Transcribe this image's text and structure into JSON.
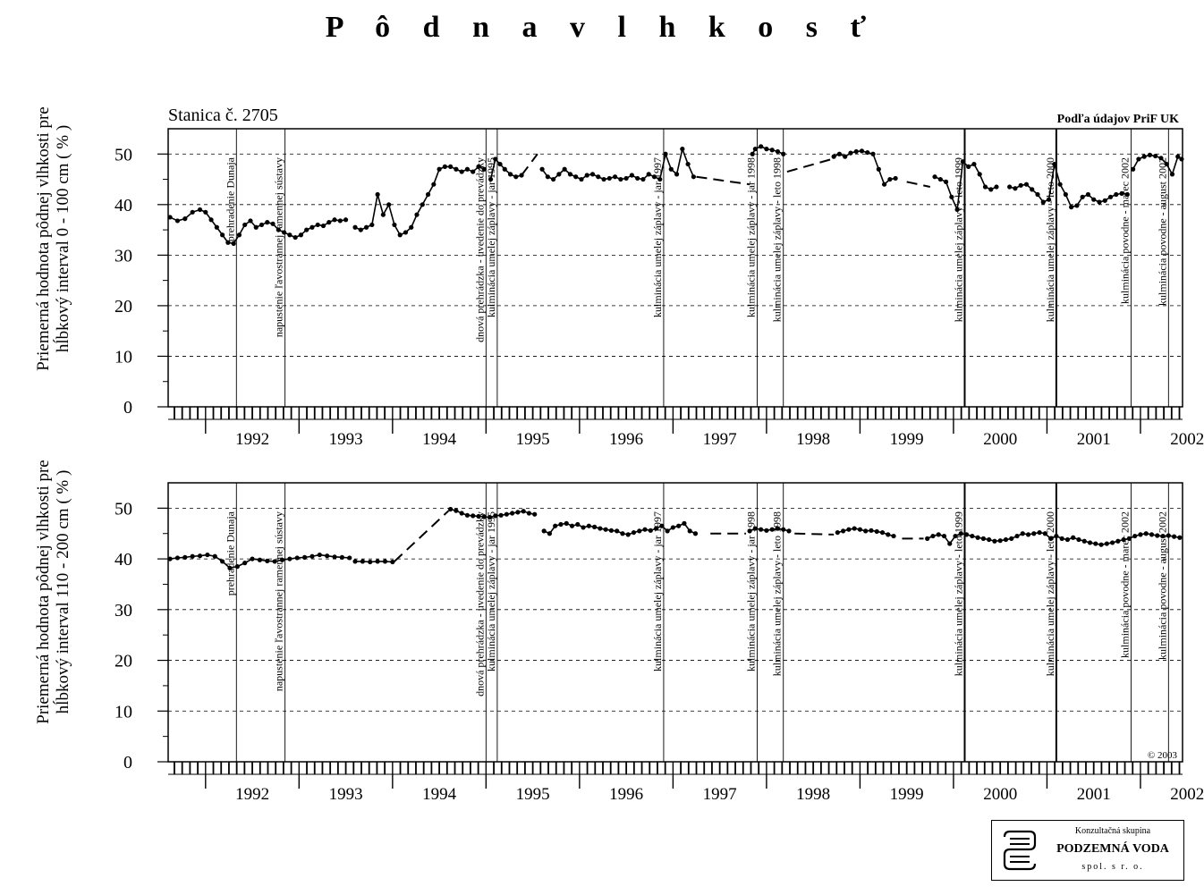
{
  "title": "P ô d n a   v l h k o s ť",
  "station_label": "Stanica č.  2705",
  "source_note": "Podľa údajov PriF UK",
  "copyright": "© 2003",
  "logo": {
    "line1": "Konzultačná skupina",
    "line2": "PODZEMNÁ VODA",
    "line3": "spol. s r. o."
  },
  "chart_data": [
    {
      "type": "scatter",
      "ylabel": "Priemerná hodnota pôdnej vlhkosti pre hĺbkový interval 0 - 100 cm ( % )",
      "ylim": [
        0,
        55
      ],
      "yticks": [
        0,
        10,
        20,
        30,
        40,
        50
      ],
      "xlim": [
        1991.6,
        2002.45
      ],
      "year_labels": [
        "1992",
        "1993",
        "1994",
        "1995",
        "1996",
        "1997",
        "1998",
        "1999",
        "2000",
        "2001",
        "2002"
      ],
      "events": [
        {
          "x": 1992.33,
          "label": "prehradenie Dunaja"
        },
        {
          "x": 1992.85,
          "label": "napustenie ľavostrannej ramennej sústavy"
        },
        {
          "x": 1995.0,
          "label": "dnová prehrádzka - uvedenie do prevádzky"
        },
        {
          "x": 1995.12,
          "label": "kulminácia umelej záplavy - jar 1995"
        },
        {
          "x": 1996.9,
          "label": "kulminácia umelej záplavy - jar 1997"
        },
        {
          "x": 1997.9,
          "label": "kulminácia umelej záplavy - jar 1998"
        },
        {
          "x": 1998.18,
          "label": "kulminácia umelej záplavy - leto 1998"
        },
        {
          "x": 2000.12,
          "label": "kulminácia umelej záplavy - leto 1999"
        },
        {
          "x": 2001.1,
          "label": "kulminácia umelej záplavy - leto 2000"
        },
        {
          "x": 2001.9,
          "label": "kulminácia povodne - marec 2002"
        },
        {
          "x": 2002.3,
          "label": "kulminácia povodne - august 2002"
        }
      ],
      "segments": [
        {
          "style": "points",
          "x": [
            1991.62,
            1991.7,
            1991.78,
            1991.86,
            1991.94,
            1992.0,
            1992.06,
            1992.12,
            1992.18,
            1992.24,
            1992.3,
            1992.36,
            1992.42,
            1992.48,
            1992.54,
            1992.6,
            1992.66,
            1992.72,
            1992.78,
            1992.84,
            1992.9,
            1992.96,
            1993.02,
            1993.08,
            1993.14,
            1993.2,
            1993.26,
            1993.32,
            1993.38,
            1993.44,
            1993.5
          ],
          "y": [
            37.5,
            36.8,
            37.2,
            38.5,
            39,
            38.5,
            37,
            35.5,
            34,
            32.5,
            32.3,
            34,
            36,
            36.8,
            35.5,
            36,
            36.5,
            36.2,
            35,
            34.5,
            34,
            33.5,
            34,
            35,
            35.5,
            36,
            35.8,
            36.5,
            37,
            36.8,
            37
          ]
        },
        {
          "style": "points",
          "x": [
            1993.6,
            1993.66,
            1993.72,
            1993.78,
            1993.84,
            1993.9,
            1993.96,
            1994.02,
            1994.08,
            1994.14,
            1994.2,
            1994.26,
            1994.32,
            1994.38,
            1994.44,
            1994.5,
            1994.56,
            1994.62,
            1994.68,
            1994.74,
            1994.8,
            1994.86,
            1994.92,
            1994.98
          ],
          "y": [
            35.5,
            35,
            35.5,
            36,
            42,
            38,
            40,
            36,
            34,
            34.5,
            35.5,
            38,
            40,
            42,
            44,
            47,
            47.5,
            47.5,
            47,
            46.5,
            47,
            46.5,
            47.5,
            47
          ]
        },
        {
          "style": "points",
          "x": [
            1995.05,
            1995.1,
            1995.15,
            1995.2,
            1995.26,
            1995.32,
            1995.38
          ],
          "y": [
            45,
            49,
            48,
            47,
            46,
            45.5,
            45.8
          ]
        },
        {
          "style": "dashed",
          "x": [
            1995.38,
            1995.55
          ],
          "y": [
            45.8,
            50
          ]
        },
        {
          "style": "points",
          "x": [
            1995.6,
            1995.66,
            1995.72,
            1995.78,
            1995.84,
            1995.9,
            1995.96,
            1996.02,
            1996.08,
            1996.14,
            1996.2,
            1996.26,
            1996.32,
            1996.38,
            1996.44,
            1996.5,
            1996.56,
            1996.62,
            1996.68,
            1996.74,
            1996.8,
            1996.86,
            1996.92,
            1996.98,
            1997.04,
            1997.1,
            1997.16,
            1997.22
          ],
          "y": [
            47,
            45.5,
            45,
            46,
            47,
            46,
            45.5,
            45,
            45.8,
            46,
            45.5,
            45,
            45.2,
            45.5,
            45,
            45.2,
            45.8,
            45.2,
            45,
            46,
            45.5,
            45,
            50,
            47,
            46,
            51,
            48,
            45.5
          ]
        },
        {
          "style": "dashed",
          "x": [
            1997.25,
            1997.82
          ],
          "y": [
            45.5,
            44
          ]
        },
        {
          "style": "points",
          "x": [
            1997.85,
            1997.88,
            1997.94,
            1998.0,
            1998.06,
            1998.12,
            1998.18
          ],
          "y": [
            50,
            51,
            51.5,
            51,
            50.8,
            50.5,
            50
          ]
        },
        {
          "style": "dashed",
          "x": [
            1998.22,
            1998.7
          ],
          "y": [
            46.5,
            49
          ]
        },
        {
          "style": "points",
          "x": [
            1998.72,
            1998.78,
            1998.84,
            1998.9,
            1998.96,
            1999.02,
            1999.08,
            1999.14,
            1999.2,
            1999.26,
            1999.32,
            1999.38
          ],
          "y": [
            49.5,
            50,
            49.5,
            50.2,
            50.5,
            50.6,
            50.3,
            50,
            47,
            44,
            45,
            45.2
          ]
        },
        {
          "style": "dashed",
          "x": [
            1999.5,
            1999.75
          ],
          "y": [
            44.5,
            43.5
          ]
        },
        {
          "style": "points",
          "x": [
            1999.8,
            1999.86,
            1999.92,
            1999.98,
            2000.04,
            2000.1,
            2000.16,
            2000.22,
            2000.28,
            2000.34,
            2000.4,
            2000.46
          ],
          "y": [
            45.5,
            45,
            44.5,
            41.5,
            39,
            48.5,
            47.5,
            48,
            46,
            43.5,
            43,
            43.5
          ]
        },
        {
          "style": "points",
          "x": [
            2000.6,
            2000.66,
            2000.72,
            2000.78,
            2000.84,
            2000.9,
            2000.96,
            2001.02,
            2001.08,
            2001.14,
            2001.2,
            2001.26,
            2001.32,
            2001.38,
            2001.44,
            2001.5,
            2001.56,
            2001.62,
            2001.68,
            2001.74,
            2001.8,
            2001.86
          ],
          "y": [
            43.5,
            43.2,
            43.8,
            44,
            43,
            42,
            40.5,
            41,
            48,
            44,
            42,
            39.5,
            39.8,
            41.5,
            42,
            41,
            40.5,
            40.8,
            41.5,
            42,
            42.2,
            42
          ]
        },
        {
          "style": "points",
          "x": [
            2001.92,
            2001.98,
            2002.04,
            2002.1,
            2002.16,
            2002.22,
            2002.28,
            2002.34,
            2002.4,
            2002.44
          ],
          "y": [
            47,
            49,
            49.5,
            49.8,
            49.6,
            49.2,
            48,
            46,
            49.5,
            49
          ]
        }
      ]
    },
    {
      "type": "scatter",
      "ylabel": "Priemerná hodnota pôdnej vlhkosti pre hĺbkový interval 110 - 200 cm ( % )",
      "ylim": [
        0,
        55
      ],
      "yticks": [
        0,
        10,
        20,
        30,
        40,
        50
      ],
      "xlim": [
        1991.6,
        2002.45
      ],
      "year_labels": [
        "1992",
        "1993",
        "1994",
        "1995",
        "1996",
        "1997",
        "1998",
        "1999",
        "2000",
        "2001",
        "2002"
      ],
      "events": [
        {
          "x": 1992.33,
          "label": "prehradenie Dunaja"
        },
        {
          "x": 1992.85,
          "label": "napustenie ľavostrannej ramennej sústavy"
        },
        {
          "x": 1995.0,
          "label": "dnová prehrádzka - uvedenie do prevádzky"
        },
        {
          "x": 1995.12,
          "label": "kulminácia umelej záplavy - jar 1995"
        },
        {
          "x": 1996.9,
          "label": "kulminácia umelej záplavy - jar 1997"
        },
        {
          "x": 1997.9,
          "label": "kulminácia umelej záplavy - jar 1998"
        },
        {
          "x": 1998.18,
          "label": "kulminácia umelej záplavy - leto 1998"
        },
        {
          "x": 2000.12,
          "label": "kulminácia umelej záplavy - leto 1999"
        },
        {
          "x": 2001.1,
          "label": "kulminácia umelej záplavy - leto 2000"
        },
        {
          "x": 2001.9,
          "label": "kulminácia povodne - marec 2002"
        },
        {
          "x": 2002.3,
          "label": "kulminácia povodne - august 2002"
        }
      ],
      "segments": [
        {
          "style": "points",
          "x": [
            1991.62,
            1991.7,
            1991.78,
            1991.86,
            1991.94,
            1992.02,
            1992.1,
            1992.18,
            1992.26,
            1992.34,
            1992.42,
            1992.5,
            1992.58,
            1992.66,
            1992.74,
            1992.82,
            1992.9,
            1992.98,
            1993.06,
            1993.14,
            1993.22,
            1993.3,
            1993.38,
            1993.46,
            1993.54
          ],
          "y": [
            40,
            40.2,
            40.3,
            40.5,
            40.6,
            40.8,
            40.5,
            39.5,
            38.2,
            38.5,
            39.2,
            40,
            39.8,
            39.6,
            39.5,
            39.8,
            40,
            40.2,
            40.3,
            40.5,
            40.8,
            40.6,
            40.4,
            40.3,
            40.2
          ]
        },
        {
          "style": "points",
          "x": [
            1993.6,
            1993.68,
            1993.76,
            1993.84,
            1993.92,
            1994.0
          ],
          "y": [
            39.5,
            39.5,
            39.4,
            39.5,
            39.5,
            39.4
          ]
        },
        {
          "style": "dashed",
          "x": [
            1994.02,
            1994.6
          ],
          "y": [
            39.5,
            49.5
          ]
        },
        {
          "style": "points",
          "x": [
            1994.62,
            1994.68,
            1994.74,
            1994.8,
            1994.86,
            1994.92,
            1994.98,
            1995.04,
            1995.1,
            1995.16,
            1995.22,
            1995.28,
            1995.34,
            1995.4,
            1995.46,
            1995.52
          ],
          "y": [
            49.8,
            49.5,
            49,
            48.6,
            48.5,
            48.4,
            48.3,
            48.2,
            48.5,
            48.6,
            48.8,
            49,
            49.2,
            49.4,
            49,
            48.8
          ]
        },
        {
          "style": "points",
          "x": [
            1995.62,
            1995.68,
            1995.74,
            1995.8,
            1995.86,
            1995.92,
            1995.98,
            1996.04,
            1996.1,
            1996.16,
            1996.22,
            1996.28,
            1996.34,
            1996.4,
            1996.46,
            1996.52,
            1996.58,
            1996.64,
            1996.7,
            1996.76,
            1996.82,
            1996.88,
            1996.94,
            1997.0,
            1997.06,
            1997.12,
            1997.18,
            1997.24
          ],
          "y": [
            45.5,
            45,
            46.5,
            46.8,
            47,
            46.5,
            46.8,
            46.2,
            46.5,
            46.3,
            46,
            45.8,
            45.6,
            45.5,
            45,
            44.8,
            45.2,
            45.5,
            45.8,
            45.6,
            46,
            46.5,
            45.5,
            46.2,
            46.5,
            47,
            45.5,
            45
          ]
        },
        {
          "style": "dashed",
          "x": [
            1997.4,
            1997.78
          ],
          "y": [
            45,
            45
          ]
        },
        {
          "style": "points",
          "x": [
            1997.82,
            1997.88,
            1997.94,
            1998.0,
            1998.06,
            1998.12,
            1998.18,
            1998.24
          ],
          "y": [
            45.5,
            46,
            45.8,
            45.6,
            45.8,
            46,
            45.8,
            45.5
          ]
        },
        {
          "style": "dashed",
          "x": [
            1998.3,
            1998.72
          ],
          "y": [
            45,
            44.8
          ]
        },
        {
          "style": "points",
          "x": [
            1998.76,
            1998.82,
            1998.88,
            1998.94,
            1999.0,
            1999.06,
            1999.12,
            1999.18,
            1999.24,
            1999.3,
            1999.36
          ],
          "y": [
            45.2,
            45.5,
            45.8,
            46,
            45.8,
            45.5,
            45.6,
            45.4,
            45.2,
            44.8,
            44.5
          ]
        },
        {
          "style": "dashed",
          "x": [
            1999.45,
            1999.68
          ],
          "y": [
            44,
            44
          ]
        },
        {
          "style": "points",
          "x": [
            1999.72,
            1999.78,
            1999.84,
            1999.9,
            1999.96,
            2000.02,
            2000.08,
            2000.14,
            2000.2,
            2000.26,
            2000.32,
            2000.38,
            2000.44,
            2000.5,
            2000.56,
            2000.62,
            2000.68,
            2000.74,
            2000.8,
            2000.86,
            2000.92,
            2000.98,
            2001.04,
            2001.1,
            2001.16,
            2001.22,
            2001.28,
            2001.34,
            2001.4,
            2001.46,
            2001.52,
            2001.58,
            2001.64,
            2001.7,
            2001.76,
            2001.82,
            2001.88,
            2001.94,
            2002.0,
            2002.06,
            2002.12,
            2002.18,
            2002.24,
            2002.3,
            2002.36,
            2002.42
          ],
          "y": [
            44,
            44.5,
            44.8,
            44.5,
            43,
            44.5,
            45,
            44.8,
            44.5,
            44.2,
            44,
            43.8,
            43.5,
            43.6,
            43.8,
            44,
            44.5,
            45,
            44.8,
            45,
            45.2,
            45,
            44,
            44.5,
            44,
            43.8,
            44.2,
            43.8,
            43.5,
            43.2,
            43,
            42.8,
            43,
            43.2,
            43.5,
            43.8,
            44,
            44.5,
            44.8,
            45,
            44.8,
            44.6,
            44.5,
            44.6,
            44.4,
            44.2
          ]
        }
      ]
    }
  ]
}
